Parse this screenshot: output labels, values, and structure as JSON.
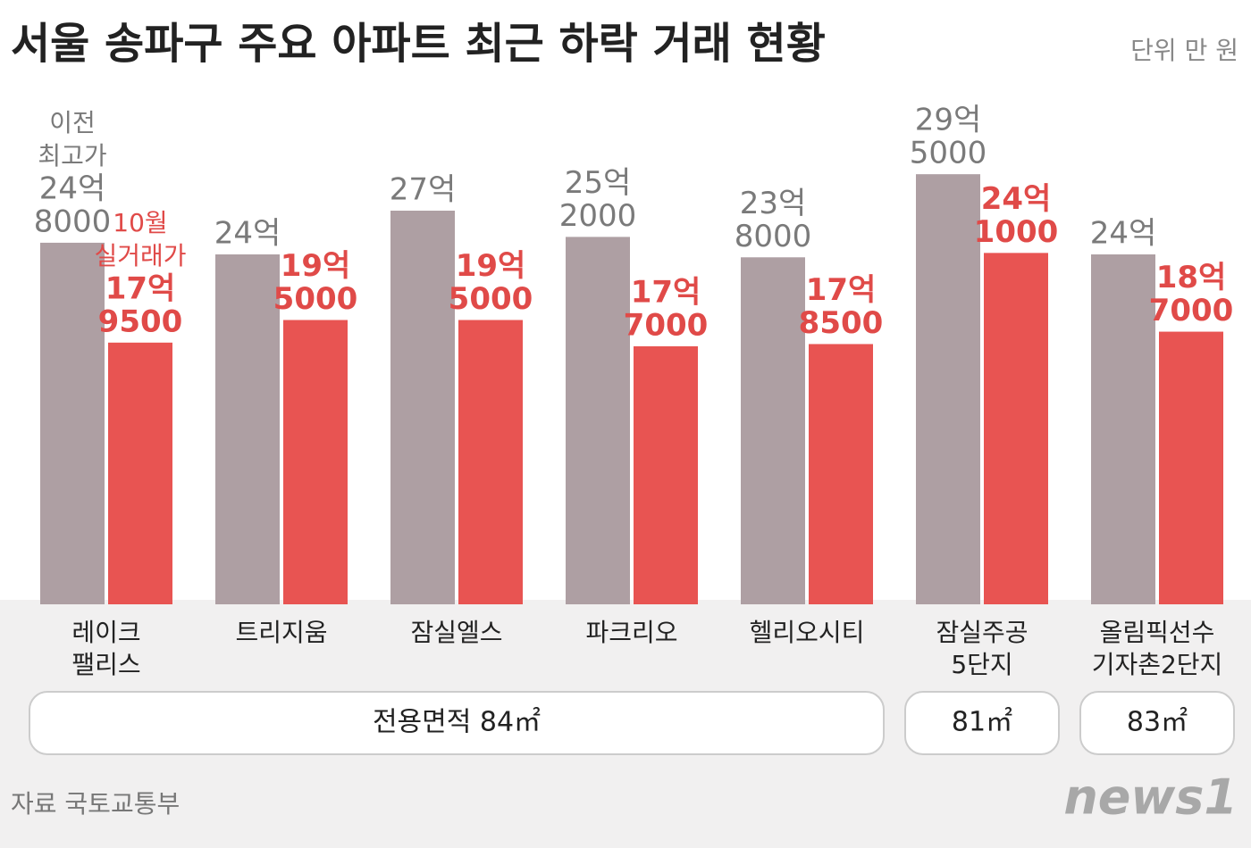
{
  "chart_data": {
    "type": "bar",
    "title": "서울 송파구 주요 아파트 최근 하락 거래 현황",
    "unit": "단위 만 원",
    "source": "자료 국토교통부",
    "logo": "news1",
    "categories": [
      [
        "레이크",
        "팰리스"
      ],
      [
        "트리지움"
      ],
      [
        "잠실엘스"
      ],
      [
        "파크리오"
      ],
      [
        "헬리오시티"
      ],
      [
        "잠실주공",
        "5단지"
      ],
      [
        "올림픽선수",
        "기자촌2단지"
      ]
    ],
    "groups": [
      "전용면적 84㎡",
      "81㎡",
      "83㎡"
    ],
    "ylim": [
      0,
      300000
    ],
    "series": [
      {
        "name": [
          "이전",
          "최고가"
        ],
        "color": "#ae9fa3",
        "label_color": "#7a7a7a",
        "values": [
          248000,
          240000,
          270000,
          252000,
          238000,
          295000,
          240000
        ],
        "value_labels": [
          [
            "24억",
            "8000"
          ],
          [
            "24억"
          ],
          [
            "27억"
          ],
          [
            "25억",
            "2000"
          ],
          [
            "23억",
            "8000"
          ],
          [
            "29억",
            "5000"
          ],
          [
            "24억"
          ]
        ]
      },
      {
        "name": [
          "10월",
          "실거래가"
        ],
        "color": "#e85452",
        "label_color": "#e04a48",
        "values": [
          179500,
          195000,
          195000,
          177000,
          178500,
          241000,
          187000
        ],
        "value_labels": [
          [
            "17억",
            "9500"
          ],
          [
            "19억",
            "5000"
          ],
          [
            "19억",
            "5000"
          ],
          [
            "17억",
            "7000"
          ],
          [
            "17억",
            "8500"
          ],
          [
            "24억",
            "1000"
          ],
          [
            "18억",
            "7000"
          ]
        ]
      }
    ]
  }
}
